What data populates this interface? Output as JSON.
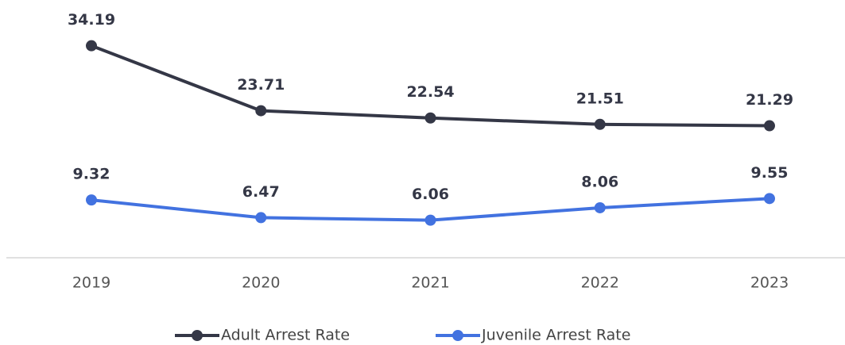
{
  "chart_data": {
    "type": "line",
    "categories": [
      "2019",
      "2020",
      "2021",
      "2022",
      "2023"
    ],
    "series": [
      {
        "name": "Adult Arrest Rate",
        "color": "#343746",
        "values": [
          34.19,
          23.71,
          22.54,
          21.51,
          21.29
        ]
      },
      {
        "name": "Juvenile Arrest Rate",
        "color": "#4272e0",
        "values": [
          9.32,
          6.47,
          6.06,
          8.06,
          9.55
        ]
      }
    ],
    "ylim": [
      0,
      36
    ],
    "legend": "bottom"
  }
}
